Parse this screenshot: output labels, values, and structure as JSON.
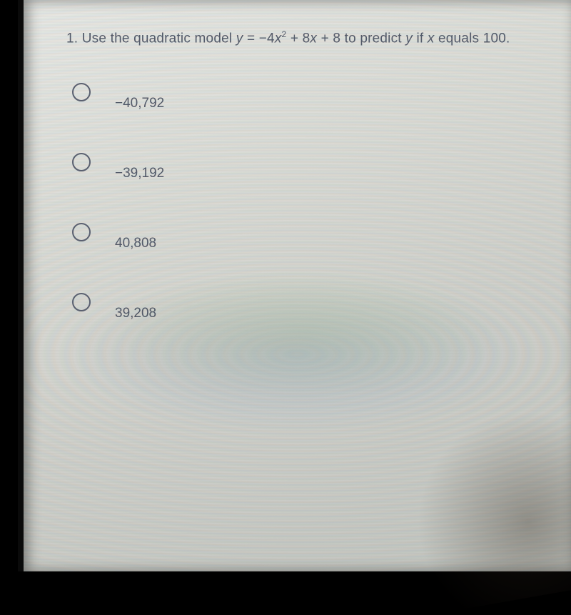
{
  "question": {
    "number": "1.",
    "prompt_pre": "Use the quadratic model ",
    "equation_lhs": "y",
    "equation_eq": " = ",
    "equation_rhs_a": "−4",
    "equation_rhs_var1": "x",
    "equation_rhs_exp": "2",
    "equation_rhs_rest": " + 8",
    "equation_rhs_var2": "x",
    "equation_rhs_tail": " + 8",
    "prompt_mid": " to predict ",
    "predict_var": "y",
    "prompt_if": " if ",
    "if_var": "x",
    "prompt_post": " equals 100."
  },
  "options": [
    {
      "label": "−40,792"
    },
    {
      "label": "−39,192"
    },
    {
      "label": "40,808"
    },
    {
      "label": "39,208"
    }
  ],
  "colors": {
    "text": "#545b6b",
    "radio_border": "#5a6070",
    "screen_bg_top": "#e8e8e6",
    "screen_bg_bottom": "#c2c4c0",
    "frame": "#0a0a0a"
  }
}
